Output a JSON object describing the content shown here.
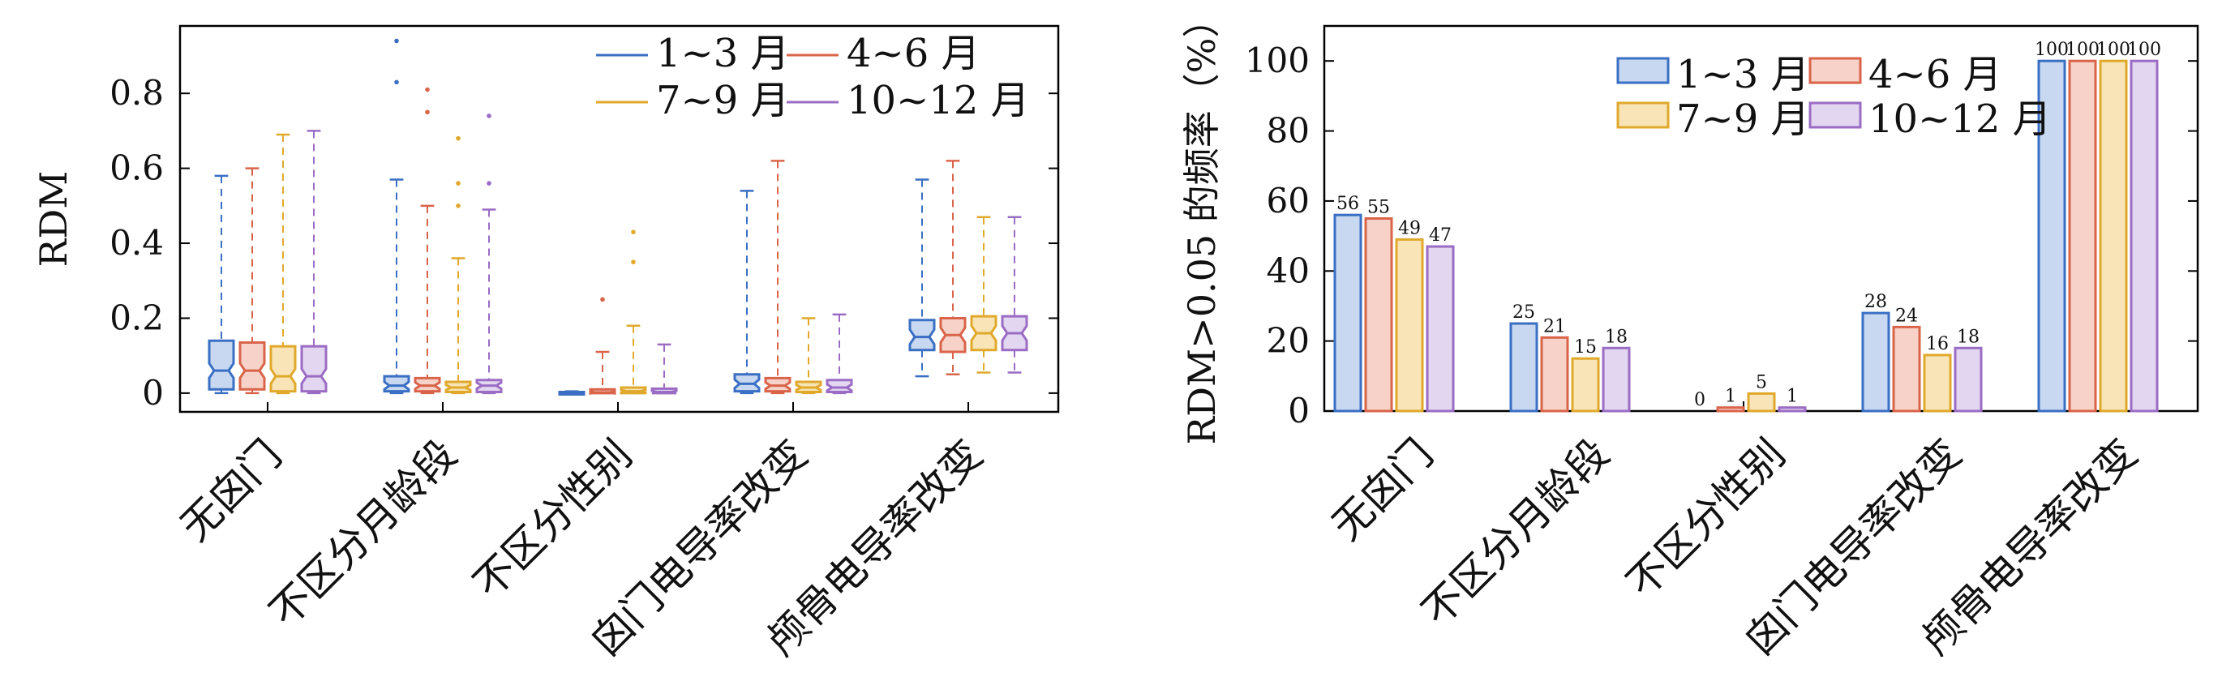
{
  "chart_data": [
    {
      "type": "box",
      "ylabel": "RDM",
      "ylim": [
        -0.05,
        0.98
      ],
      "yticks": [
        "0",
        "0.2",
        "0.4",
        "0.6",
        "0.8"
      ],
      "yticks_values": [
        0,
        0.2,
        0.4,
        0.6,
        0.8
      ],
      "categories": [
        "无囟门",
        "不区分月龄段",
        "不区分性别",
        "囟门电导率改变",
        "颅骨电导率改变"
      ],
      "legend": {
        "placement": "top-right",
        "columns": 2
      },
      "series": [
        {
          "name": "1~3 月",
          "color": "#3a6fc4",
          "fill": "#c8d8f0",
          "boxes": [
            {
              "min": 0.0,
              "q1": 0.01,
              "median": 0.06,
              "q3": 0.14,
              "max": 0.58,
              "outliers": []
            },
            {
              "min": 0.0,
              "q1": 0.005,
              "median": 0.02,
              "q3": 0.045,
              "max": 0.57,
              "outliers": [
                0.83,
                0.94
              ]
            },
            {
              "min": 0.0,
              "q1": 0.0,
              "median": 0.0,
              "q3": 0.003,
              "max": 0.005,
              "outliers": []
            },
            {
              "min": 0.0,
              "q1": 0.005,
              "median": 0.025,
              "q3": 0.05,
              "max": 0.54,
              "outliers": []
            },
            {
              "min": 0.045,
              "q1": 0.115,
              "median": 0.15,
              "q3": 0.195,
              "max": 0.57,
              "outliers": []
            }
          ]
        },
        {
          "name": "4~6 月",
          "color": "#d9644a",
          "fill": "#f6d2c8",
          "boxes": [
            {
              "min": 0.0,
              "q1": 0.01,
              "median": 0.06,
              "q3": 0.135,
              "max": 0.6,
              "outliers": []
            },
            {
              "min": 0.0,
              "q1": 0.005,
              "median": 0.02,
              "q3": 0.04,
              "max": 0.5,
              "outliers": [
                0.75,
                0.81
              ]
            },
            {
              "min": 0.0,
              "q1": 0.0,
              "median": 0.002,
              "q3": 0.01,
              "max": 0.11,
              "outliers": [
                0.25
              ]
            },
            {
              "min": 0.0,
              "q1": 0.005,
              "median": 0.02,
              "q3": 0.04,
              "max": 0.62,
              "outliers": []
            },
            {
              "min": 0.05,
              "q1": 0.11,
              "median": 0.155,
              "q3": 0.2,
              "max": 0.62,
              "outliers": []
            }
          ]
        },
        {
          "name": "7~9 月",
          "color": "#e0a92c",
          "fill": "#f8e4b6",
          "boxes": [
            {
              "min": 0.0,
              "q1": 0.005,
              "median": 0.045,
              "q3": 0.125,
              "max": 0.69,
              "outliers": []
            },
            {
              "min": 0.0,
              "q1": 0.003,
              "median": 0.015,
              "q3": 0.03,
              "max": 0.36,
              "outliers": [
                0.5,
                0.56,
                0.68
              ]
            },
            {
              "min": 0.0,
              "q1": 0.0,
              "median": 0.005,
              "q3": 0.015,
              "max": 0.18,
              "outliers": [
                0.35,
                0.43
              ]
            },
            {
              "min": 0.0,
              "q1": 0.003,
              "median": 0.015,
              "q3": 0.03,
              "max": 0.2,
              "outliers": []
            },
            {
              "min": 0.055,
              "q1": 0.115,
              "median": 0.16,
              "q3": 0.205,
              "max": 0.47,
              "outliers": []
            }
          ]
        },
        {
          "name": "10~12 月",
          "color": "#9b6cc4",
          "fill": "#e3d6f0",
          "boxes": [
            {
              "min": 0.0,
              "q1": 0.005,
              "median": 0.045,
              "q3": 0.125,
              "max": 0.7,
              "outliers": []
            },
            {
              "min": 0.0,
              "q1": 0.003,
              "median": 0.02,
              "q3": 0.035,
              "max": 0.49,
              "outliers": [
                0.56,
                0.74
              ]
            },
            {
              "min": 0.0,
              "q1": 0.0,
              "median": 0.003,
              "q3": 0.012,
              "max": 0.13,
              "outliers": []
            },
            {
              "min": 0.0,
              "q1": 0.003,
              "median": 0.015,
              "q3": 0.035,
              "max": 0.21,
              "outliers": []
            },
            {
              "min": 0.055,
              "q1": 0.115,
              "median": 0.16,
              "q3": 0.205,
              "max": 0.47,
              "outliers": []
            }
          ]
        }
      ]
    },
    {
      "type": "bar",
      "ylabel": "RDM>0.05 的频率（%）",
      "ylim": [
        0,
        110
      ],
      "yticks": [
        "0",
        "20",
        "40",
        "60",
        "80",
        "100"
      ],
      "yticks_values": [
        0,
        20,
        40,
        60,
        80,
        100
      ],
      "categories": [
        "无囟门",
        "不区分月龄段",
        "不区分性别",
        "囟门电导率改变",
        "颅骨电导率改变"
      ],
      "legend": {
        "placement": "top-right",
        "columns": 2
      },
      "series": [
        {
          "name": "1~3 月",
          "color": "#3a6fc4",
          "fill": "#c8d8f0",
          "values": [
            56,
            25,
            0,
            28,
            100
          ],
          "labels": [
            "56",
            "25",
            "0",
            "28",
            "100"
          ]
        },
        {
          "name": "4~6 月",
          "color": "#d9644a",
          "fill": "#f6d2c8",
          "values": [
            55,
            21,
            1,
            24,
            100
          ],
          "labels": [
            "55",
            "21",
            "1",
            "24",
            "100"
          ]
        },
        {
          "name": "7~9 月",
          "color": "#e0a92c",
          "fill": "#f8e4b6",
          "values": [
            49,
            15,
            5,
            16,
            100
          ],
          "labels": [
            "49",
            "15",
            "5",
            "16",
            "100"
          ]
        },
        {
          "name": "10~12 月",
          "color": "#9b6cc4",
          "fill": "#e3d6f0",
          "values": [
            47,
            18,
            1,
            18,
            100
          ],
          "labels": [
            "47",
            "18",
            "1",
            "18",
            "100"
          ]
        }
      ]
    }
  ]
}
